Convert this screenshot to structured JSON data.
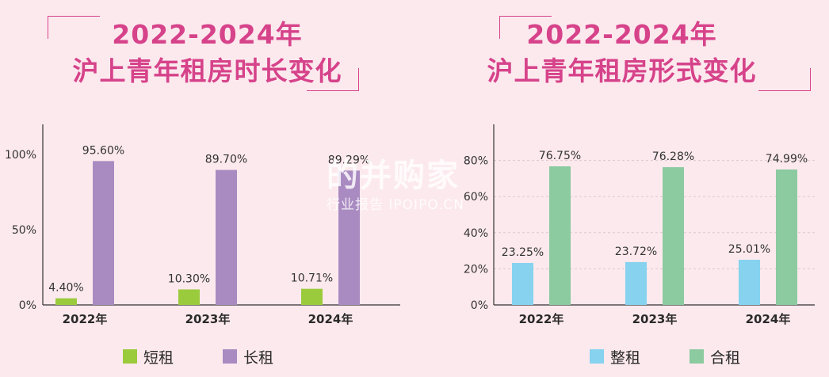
{
  "charts": [
    {
      "title_line1": "2022-2024年",
      "title_line2": "沪上青年租房时长变化"
    },
    {
      "title_line1": "2022-2024年",
      "title_line2": "沪上青年租房形式变化"
    }
  ],
  "watermark": {
    "main": "的并购家",
    "sub": "行业报告 IPOIPO.CN"
  },
  "chart_data": [
    {
      "type": "bar",
      "title": "2022-2024年 沪上青年租房时长变化",
      "categories": [
        "2022年",
        "2023年",
        "2024年"
      ],
      "series": [
        {
          "name": "短租",
          "color": "#9acb3c",
          "values": [
            4.4,
            10.3,
            10.71
          ],
          "labels": [
            "4.40%",
            "10.30%",
            "10.71%"
          ]
        },
        {
          "name": "长租",
          "color": "#a98bc1",
          "values": [
            95.6,
            89.7,
            89.29
          ],
          "labels": [
            "95.60%",
            "89.70%",
            "89.29%"
          ]
        }
      ],
      "ylim": [
        0,
        120
      ],
      "yticks": [
        0,
        50,
        100
      ],
      "ytick_labels": [
        "0%",
        "50%",
        "100%"
      ],
      "grid": false,
      "legend": "bottom"
    },
    {
      "type": "bar",
      "title": "2022-2024年 沪上青年租房形式变化",
      "categories": [
        "2022年",
        "2023年",
        "2024年"
      ],
      "series": [
        {
          "name": "整租",
          "color": "#86d2ef",
          "values": [
            23.25,
            23.72,
            25.01
          ],
          "labels": [
            "23.25%",
            "23.72%",
            "25.01%"
          ]
        },
        {
          "name": "合租",
          "color": "#8ccaa0",
          "values": [
            76.75,
            76.28,
            74.99
          ],
          "labels": [
            "76.75%",
            "76.28%",
            "74.99%"
          ]
        }
      ],
      "ylim": [
        0,
        100
      ],
      "yticks": [
        0,
        20,
        40,
        60,
        80
      ],
      "ytick_labels": [
        "0%",
        "20%",
        "40%",
        "60%",
        "80%"
      ],
      "grid": true,
      "legend": "bottom"
    }
  ]
}
